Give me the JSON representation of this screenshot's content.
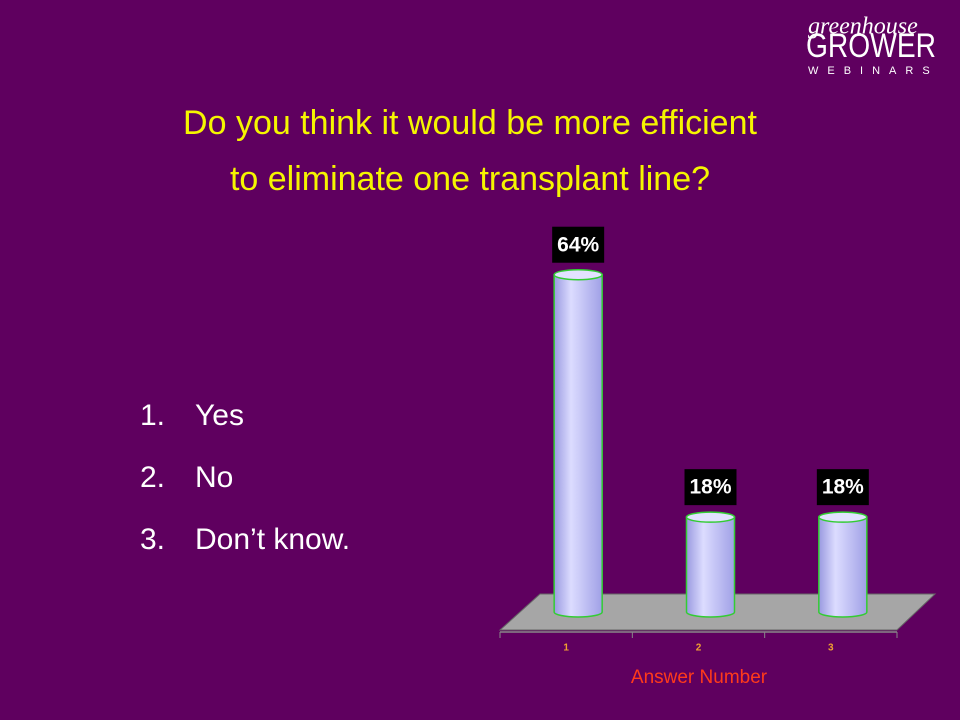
{
  "logo": {
    "line1": "greenhouse",
    "line2": "GROWER",
    "line3": "WEBINARS"
  },
  "options": [
    {
      "number": "1.",
      "text": "Yes"
    },
    {
      "number": "2.",
      "text": "No"
    },
    {
      "number": "3.",
      "text": "Don’t know."
    }
  ],
  "chart_data": {
    "type": "bar",
    "title": [
      "Do you think it would be more efficient",
      "to eliminate one transplant line?"
    ],
    "categories": [
      "1",
      "2",
      "3"
    ],
    "values": [
      64,
      18,
      18
    ],
    "value_labels": [
      "64%",
      "18%",
      "18%"
    ],
    "x_label": "Answer Number",
    "color": "#c8c8f6",
    "edge_color": "#33cc33"
  }
}
